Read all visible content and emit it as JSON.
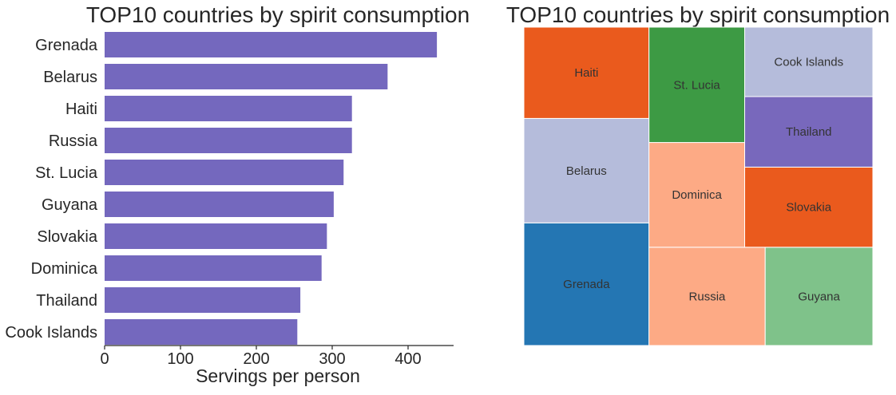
{
  "chart_data": [
    {
      "type": "bar",
      "orientation": "horizontal",
      "title": "TOP10 countries by spirit consumption",
      "xlabel": "Servings per person",
      "ylabel": "",
      "categories": [
        "Grenada",
        "Belarus",
        "Haiti",
        "Russia",
        "St. Lucia",
        "Guyana",
        "Slovakia",
        "Dominica",
        "Thailand",
        "Cook Islands"
      ],
      "values": [
        438,
        373,
        326,
        326,
        315,
        302,
        293,
        286,
        258,
        254
      ],
      "xlim": [
        0,
        460
      ],
      "xticks": [
        "0",
        "100",
        "200",
        "300",
        "400"
      ],
      "bar_color": "#7468be",
      "grid": false
    },
    {
      "type": "treemap",
      "title": "TOP10 countries by spirit consumption",
      "items": [
        {
          "label": "Grenada",
          "value": 438,
          "color": "#2476b3"
        },
        {
          "label": "Belarus",
          "value": 373,
          "color": "#b5bcdb"
        },
        {
          "label": "Haiti",
          "value": 326,
          "color": "#ea5a1d"
        },
        {
          "label": "Russia",
          "value": 326,
          "color": "#fdaa85"
        },
        {
          "label": "Guyana",
          "value": 302,
          "color": "#7fc28a"
        },
        {
          "label": "Dominica",
          "value": 286,
          "color": "#fdaa85"
        },
        {
          "label": "St. Lucia",
          "value": 315,
          "color": "#3d9a44"
        },
        {
          "label": "Slovakia",
          "value": 293,
          "color": "#ea5a1d"
        },
        {
          "label": "Thailand",
          "value": 258,
          "color": "#7868bc"
        },
        {
          "label": "Cook Islands",
          "value": 254,
          "color": "#b5bcdb"
        }
      ]
    }
  ]
}
